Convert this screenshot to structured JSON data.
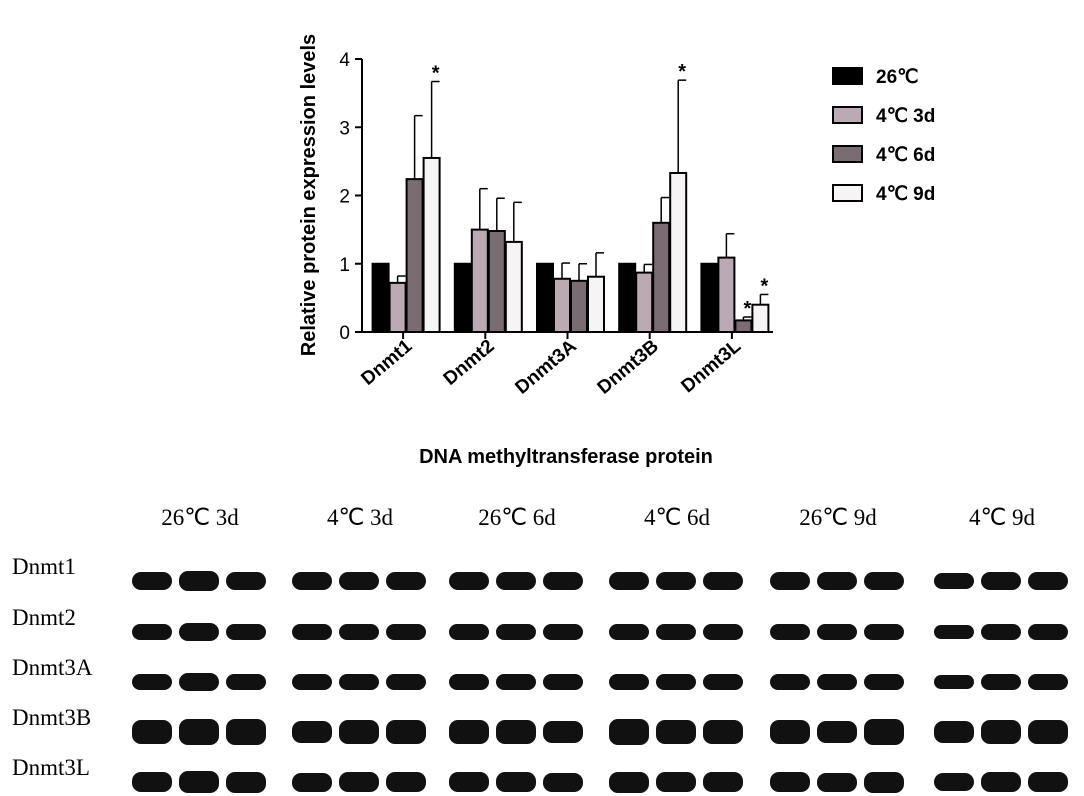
{
  "chart_data": {
    "type": "bar",
    "title": "",
    "xlabel": "DNA methyltransferase protein",
    "ylabel": "Relative protein expression levels",
    "ylim": [
      0,
      4
    ],
    "yticks": [
      "0",
      "1",
      "2",
      "3",
      "4"
    ],
    "categories": [
      "Dnmt1",
      "Dnmt2",
      "Dnmt3A",
      "Dnmt3B",
      "Dnmt3L"
    ],
    "series": [
      {
        "name": "26℃",
        "color": "#000000",
        "values": [
          1.0,
          1.0,
          1.0,
          1.0,
          1.0
        ],
        "errors": [
          0,
          0,
          0,
          0,
          0
        ]
      },
      {
        "name": "4℃ 3d",
        "color": "#bba9b3",
        "values": [
          0.72,
          1.5,
          0.78,
          0.87,
          1.09
        ],
        "errors": [
          0.1,
          0.6,
          0.23,
          0.12,
          0.35
        ]
      },
      {
        "name": "4℃ 6d",
        "color": "#7a6c73",
        "values": [
          2.24,
          1.48,
          0.75,
          1.6,
          0.17
        ],
        "errors": [
          0.93,
          0.48,
          0.25,
          0.37,
          0.05
        ]
      },
      {
        "name": "4℃ 9d",
        "color": "#f7f4f6",
        "values": [
          2.55,
          1.32,
          0.81,
          2.33,
          0.4
        ],
        "errors": [
          1.12,
          0.58,
          0.35,
          1.36,
          0.15
        ]
      }
    ],
    "significance": [
      {
        "category": "Dnmt1",
        "series": "4℃ 9d",
        "label": "*"
      },
      {
        "category": "Dnmt3B",
        "series": "4℃ 9d",
        "label": "*"
      },
      {
        "category": "Dnmt3L",
        "series": "4℃ 6d",
        "label": "*"
      },
      {
        "category": "Dnmt3L",
        "series": "4℃ 9d",
        "label": "*"
      }
    ],
    "legend_position": "right"
  },
  "blot": {
    "column_headers": [
      "26℃ 3d",
      "4℃ 3d",
      "26℃ 6d",
      "4℃ 6d",
      "26℃ 9d",
      "4℃ 9d"
    ],
    "row_labels": [
      "Dnmt1",
      "Dnmt2",
      "Dnmt3A",
      "Dnmt3B",
      "Dnmt3L"
    ],
    "lanes_per_group": 3
  }
}
